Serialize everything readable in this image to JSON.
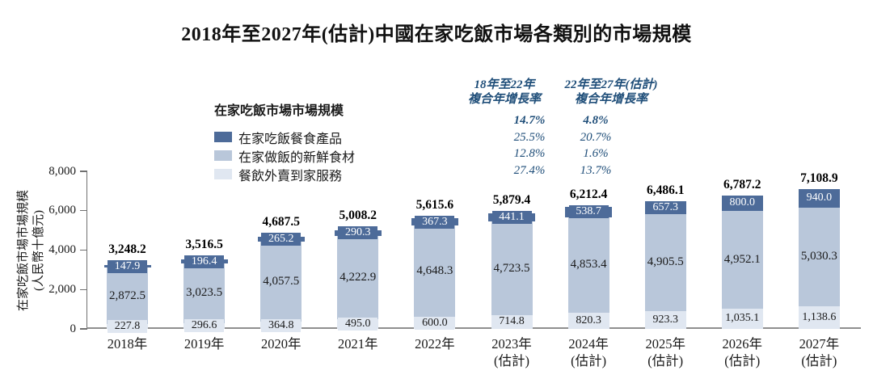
{
  "title": "2018年至2027年(估計)中國在家吃飯市場各類別的市場規模",
  "legend": {
    "title": "在家吃飯市場市場規模",
    "items": [
      {
        "label": "在家吃飯餐食產品",
        "color": "#4d6b99"
      },
      {
        "label": "在家做飯的新鮮食材",
        "color": "#b9c7da"
      },
      {
        "label": "餐飲外賣到家服務",
        "color": "#e0e7f1"
      }
    ]
  },
  "cagr": {
    "col1": {
      "header_line1": "18年至22年",
      "header_line2": "複合年增長率",
      "values": [
        "14.7%",
        "25.5%",
        "12.8%",
        "27.4%"
      ]
    },
    "col2": {
      "header_line1": "22年至27年(估計)",
      "header_line2": "複合年增長率",
      "values": [
        "4.8%",
        "20.7%",
        "1.6%",
        "13.7%"
      ]
    }
  },
  "chart_data": {
    "type": "bar",
    "stacked": true,
    "title": "2018年至2027年(估計)中國在家吃飯市場各類別的市場規模",
    "ylabel_line1": "在家吃飯市場市場規模",
    "ylabel_line2": "(人民幣十億元)",
    "ylim": [
      0,
      8000
    ],
    "yticks": [
      0,
      2000,
      4000,
      6000,
      8000
    ],
    "ytick_labels": [
      "0",
      "2,000",
      "4,000",
      "6,000",
      "8,000"
    ],
    "grid": false,
    "legend_position": "upper-left",
    "categories": [
      {
        "line1": "2018年",
        "line2": ""
      },
      {
        "line1": "2019年",
        "line2": ""
      },
      {
        "line1": "2020年",
        "line2": ""
      },
      {
        "line1": "2021年",
        "line2": ""
      },
      {
        "line1": "2022年",
        "line2": ""
      },
      {
        "line1": "2023年",
        "line2": "(估計)"
      },
      {
        "line1": "2024年",
        "line2": "(估計)"
      },
      {
        "line1": "2025年",
        "line2": "(估計)"
      },
      {
        "line1": "2026年",
        "line2": "(估計)"
      },
      {
        "line1": "2027年",
        "line2": "(估計)"
      }
    ],
    "series": [
      {
        "name": "在家吃飯餐食產品",
        "color": "#4d6b99",
        "values": [
          147.9,
          196.4,
          265.2,
          290.3,
          367.3,
          441.1,
          538.7,
          657.3,
          800.0,
          940.0
        ],
        "labels": [
          "147.9",
          "196.4",
          "265.2",
          "290.3",
          "367.3",
          "441.1",
          "538.7",
          "657.3",
          "800.0",
          "940.0"
        ]
      },
      {
        "name": "在家做飯的新鮮食材",
        "color": "#b9c7da",
        "values": [
          2872.5,
          3023.5,
          4057.5,
          4222.9,
          4648.3,
          4723.5,
          4853.4,
          4905.5,
          4952.1,
          5030.3
        ],
        "labels": [
          "2,872.5",
          "3,023.5",
          "4,057.5",
          "4,222.9",
          "4,648.3",
          "4,723.5",
          "4,853.4",
          "4,905.5",
          "4,952.1",
          "5,030.3"
        ]
      },
      {
        "name": "餐飲外賣到家服務",
        "color": "#e0e7f1",
        "values": [
          227.8,
          296.6,
          364.8,
          495.0,
          600.0,
          714.8,
          820.3,
          923.3,
          1035.1,
          1138.6
        ],
        "labels": [
          "227.8",
          "296.6",
          "364.8",
          "495.0",
          "600.0",
          "714.8",
          "820.3",
          "923.3",
          "1,035.1",
          "1,138.6"
        ]
      }
    ],
    "totals": [
      3248.2,
      3516.5,
      4687.5,
      5008.2,
      5615.6,
      5879.4,
      6212.4,
      6486.1,
      6787.2,
      7108.9
    ],
    "totals_labels": [
      "3,248.2",
      "3,516.5",
      "4,687.5",
      "5,008.2",
      "5,615.6",
      "5,879.4",
      "6,212.4",
      "6,486.1",
      "6,787.2",
      "7,108.9"
    ]
  }
}
